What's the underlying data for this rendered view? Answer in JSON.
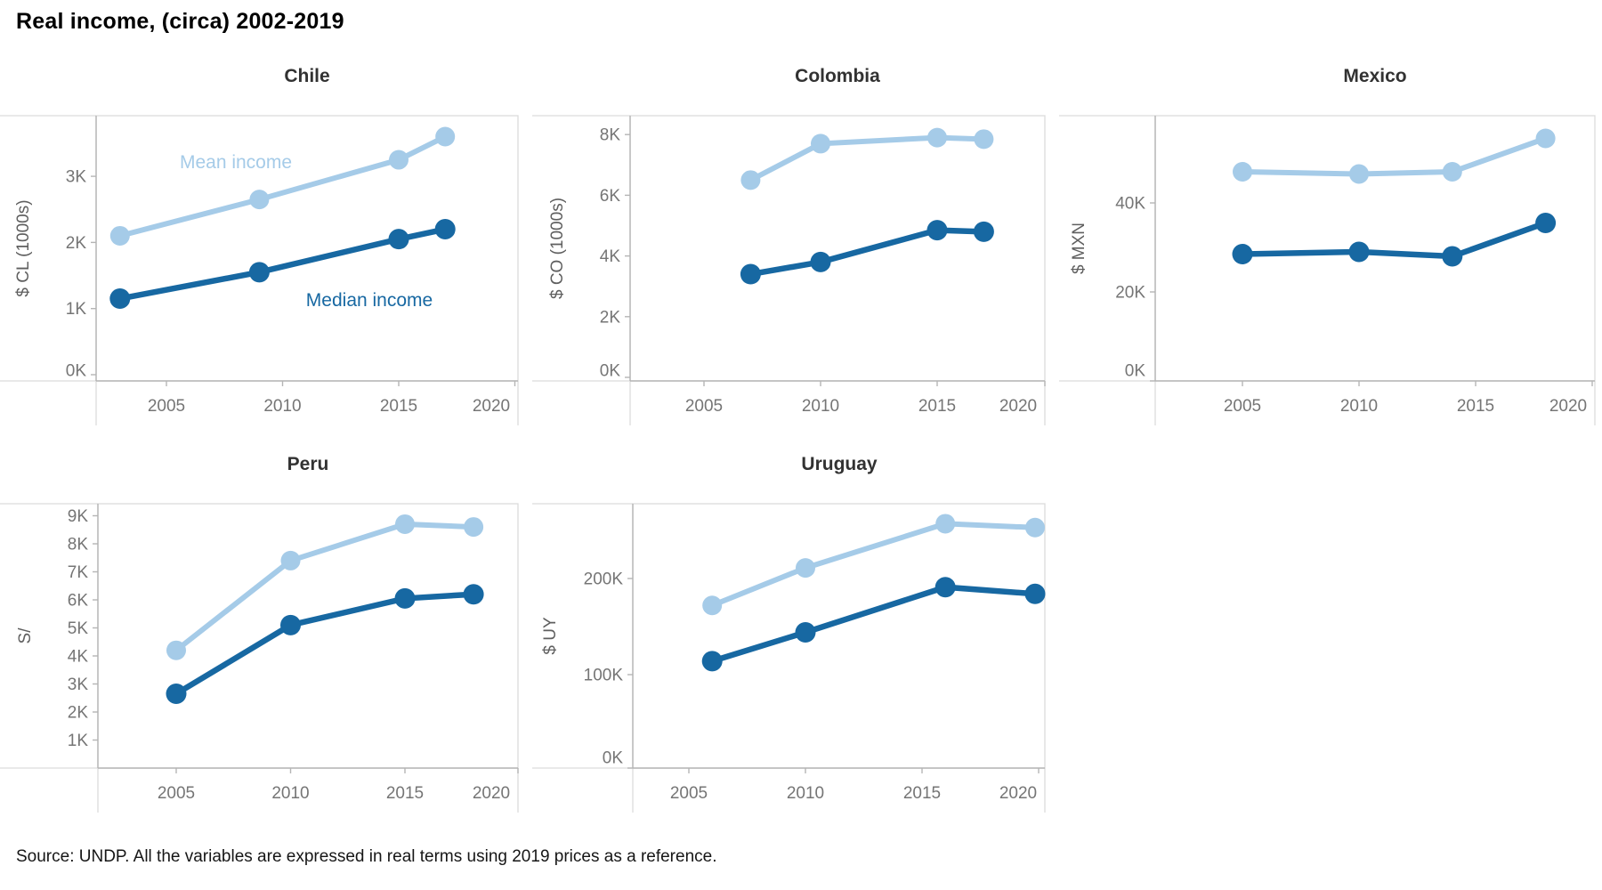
{
  "page": {
    "title": "Real income, (circa) 2002-2019",
    "source_note": "Source: UNDP. All the variables are expressed in real terms using 2019 prices as a reference."
  },
  "annotations": {
    "mean_label": "Mean income",
    "median_label": "Median income"
  },
  "colors": {
    "mean_series": "#a5cbe8",
    "median_series": "#1768a2",
    "tick_text": "#757575",
    "axis_title_text": "#5f5f5f",
    "chart_title_text": "#323232",
    "axis_line": "#b5b5b5",
    "panel_border": "#dcdcdc"
  },
  "chart_data": [
    {
      "type": "line",
      "title": "Chile",
      "ylabel": "$ CL (1000s)",
      "x_ticks": [
        2005,
        2010,
        2015,
        2020
      ],
      "x_tick_labels": [
        "2005",
        "2010",
        "2015",
        "2020"
      ],
      "y_ticks": [
        0,
        1,
        2,
        3
      ],
      "y_tick_labels": [
        "0K",
        "1K",
        "2K",
        "3K"
      ],
      "ylim": [
        0,
        3.92
      ],
      "grid": false,
      "x": [
        2003,
        2009,
        2015,
        2017
      ],
      "series": [
        {
          "name": "Mean income",
          "values": [
            2.1,
            2.65,
            3.25,
            3.6
          ]
        },
        {
          "name": "Median income",
          "values": [
            1.15,
            1.55,
            2.05,
            2.2
          ]
        }
      ]
    },
    {
      "type": "line",
      "title": "Colombia",
      "ylabel": "$ CO (1000s)",
      "x_ticks": [
        2005,
        2010,
        2015,
        2020
      ],
      "x_tick_labels": [
        "2005",
        "2010",
        "2015",
        "2020"
      ],
      "y_ticks": [
        0,
        2,
        4,
        6,
        8
      ],
      "y_tick_labels": [
        "0K",
        "2K",
        "4K",
        "6K",
        "8K"
      ],
      "ylim": [
        0,
        8.6
      ],
      "grid": false,
      "x": [
        2007,
        2010,
        2015,
        2017
      ],
      "series": [
        {
          "name": "Mean income",
          "values": [
            6.5,
            7.7,
            7.9,
            7.85
          ]
        },
        {
          "name": "Median income",
          "values": [
            3.4,
            3.8,
            4.85,
            4.8
          ]
        }
      ]
    },
    {
      "type": "line",
      "title": "Mexico",
      "ylabel": "$ MXN",
      "x_ticks": [
        2005,
        2010,
        2015,
        2020
      ],
      "x_tick_labels": [
        "2005",
        "2010",
        "2015",
        "2020"
      ],
      "y_ticks": [
        0,
        20,
        40
      ],
      "y_tick_labels": [
        "0K",
        "20K",
        "40K"
      ],
      "ylim": [
        0,
        59.6
      ],
      "grid": false,
      "x": [
        2005,
        2010,
        2014,
        2018
      ],
      "series": [
        {
          "name": "Mean income",
          "values": [
            47,
            46.5,
            47,
            54.5
          ]
        },
        {
          "name": "Median income",
          "values": [
            28.5,
            29,
            28,
            35.5
          ]
        }
      ]
    },
    {
      "type": "line",
      "title": "Peru",
      "ylabel": "S/",
      "x_ticks": [
        2005,
        2010,
        2015,
        2020
      ],
      "x_tick_labels": [
        "2005",
        "2010",
        "2015",
        "2020"
      ],
      "y_ticks": [
        1,
        2,
        3,
        4,
        5,
        6,
        7,
        8,
        9
      ],
      "y_tick_labels": [
        "1K",
        "2K",
        "3K",
        "4K",
        "5K",
        "6K",
        "7K",
        "8K",
        "9K"
      ],
      "ylim": [
        0,
        9.43
      ],
      "grid": false,
      "x": [
        2005,
        2010,
        2015,
        2018
      ],
      "series": [
        {
          "name": "Mean income",
          "values": [
            4.2,
            7.4,
            8.7,
            8.6
          ]
        },
        {
          "name": "Median income",
          "values": [
            2.65,
            5.1,
            6.05,
            6.2
          ]
        }
      ]
    },
    {
      "type": "line",
      "title": "Uruguay",
      "ylabel": "$ UY",
      "x_ticks": [
        2005,
        2010,
        2015,
        2020
      ],
      "x_tick_labels": [
        "2005",
        "2010",
        "2015",
        "2020"
      ],
      "y_ticks": [
        0,
        100,
        200
      ],
      "y_tick_labels": [
        "0K",
        "100K",
        "200K"
      ],
      "ylim": [
        0,
        278
      ],
      "grid": false,
      "x": [
        2006,
        2010,
        2016,
        2020
      ],
      "series": [
        {
          "name": "Mean income",
          "values": [
            172,
            211,
            257,
            253
          ]
        },
        {
          "name": "Median income",
          "values": [
            114,
            144,
            191,
            184
          ]
        }
      ]
    }
  ]
}
